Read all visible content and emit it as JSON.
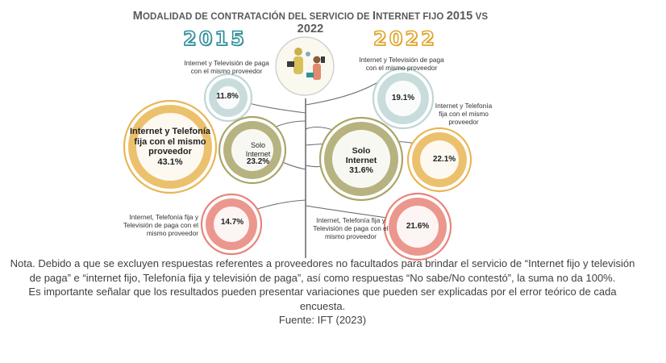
{
  "title": {
    "part1_big": "M",
    "part1_small": "ODALIDAD DE CONTRATACIÓN DEL SERVICIO DE ",
    "part2_big": "I",
    "part2_small": "NTERNET FIJO ",
    "y1": "2015",
    "vs": " VS ",
    "y2": "2022"
  },
  "years": {
    "left": "2015",
    "right": "2022"
  },
  "colors": {
    "teal_light": "#bfd6d6",
    "olive": "#a9a66a",
    "mustard": "#e9b654",
    "salmon": "#e8857a",
    "trunk": "#6f6f6f",
    "accent_2015": "#2f8f9d",
    "accent_2022": "#e0a52e"
  },
  "chart_data": {
    "type": "bubble",
    "title": "Modalidad de contratación del servicio de Internet fijo 2015 vs 2022",
    "unit": "%",
    "series": [
      {
        "name": "2015",
        "points": [
          {
            "label": "Internet y Televisión de paga con el mismo proveedor",
            "value": 11.8
          },
          {
            "label": "Internet y Telefonía fija con el mismo proveedor",
            "value": 43.1
          },
          {
            "label": "Solo Internet",
            "value": 23.2
          },
          {
            "label": "Internet, Telefonía fija y Televisión de paga con el mismo proveedor",
            "value": 14.7
          }
        ]
      },
      {
        "name": "2022",
        "points": [
          {
            "label": "Internet y Televisión de paga con el mismo proveedor",
            "value": 19.1
          },
          {
            "label": "Internet y Telefonía fija con el mismo proveedor",
            "value": 22.1
          },
          {
            "label": "Solo Internet",
            "value": 31.6
          },
          {
            "label": "Internet, Telefonía fija y Televisión de paga con el mismo proveedor",
            "value": 21.6
          }
        ]
      }
    ]
  },
  "labels": {
    "l2015_tv": "Internet y Televisión de paga con el mismo proveedor",
    "l2015_tel_line1": "Internet y Telefonía",
    "l2015_tel_line2": "fija con el mismo",
    "l2015_tel_line3": "proveedor",
    "l2015_tel_value": "43.1%",
    "l2015_tv_value": "11.8%",
    "l2015_solo_line1": "Solo",
    "l2015_solo_line2": "Internet",
    "l2015_solo_value": "23.2%",
    "l2015_all": "Internet, Telefonía fija y Televisión de paga con el mismo proveedor",
    "l2015_all_value": "14.7%",
    "l2022_tv": "Internet y Televisión de paga con el mismo proveedor",
    "l2022_tv_value": "19.1%",
    "l2022_tel": "Internet y Telefonía fija con el mismo proveedor",
    "l2022_tel_value": "22.1%",
    "l2022_solo_line1": "Solo",
    "l2022_solo_line2": "Internet",
    "l2022_solo_value": "31.6%",
    "l2022_all": "Internet, Telefonía fija y Televisión de paga con el mismo proveedor",
    "l2022_all_value": "21.6%"
  },
  "icon": "people-with-devices-illustration",
  "note": {
    "p1": "Nota. Debido a que se excluyen respuestas referentes a proveedores no facultados para brindar el servicio de “Internet fijo y televisión de paga” e “internet fijo, Telefonía fija y televisión de paga”, así como respuestas “No sabe/No contestó”, la suma no da 100%.",
    "p2": "Es importante señalar que los resultados pueden presentar variaciones que pueden ser explicadas por el error teórico de cada encuesta.",
    "p3": "Fuente: IFT (2023)"
  }
}
